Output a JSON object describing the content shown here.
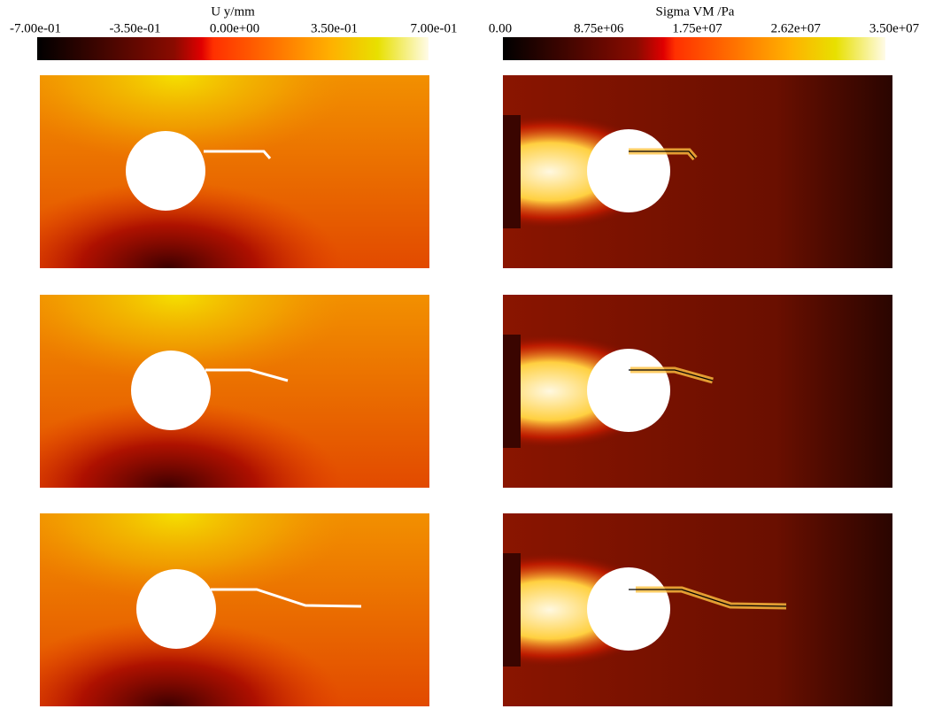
{
  "colorbars": [
    {
      "title": "U y/mm",
      "ticks": [
        "-7.00e-01",
        "-3.50e-01",
        "0.00e+00",
        "3.50e-01",
        "7.00e-01"
      ]
    },
    {
      "title": "Sigma VM /Pa",
      "ticks": [
        "0.00",
        "8.75e+06",
        "1.75e+07",
        "2.62e+07",
        "3.50e+07"
      ]
    }
  ]
}
